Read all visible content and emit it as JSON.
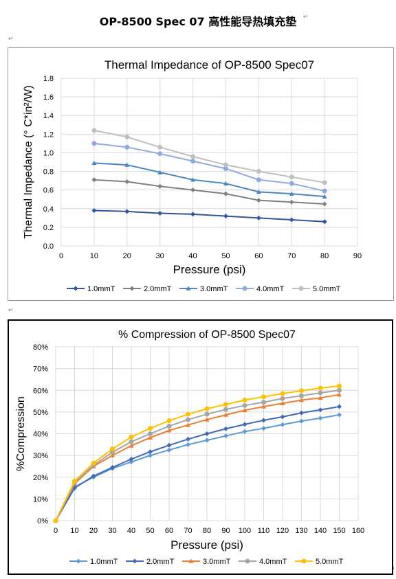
{
  "document": {
    "title": "OP-8500 Spec 07  高性能导热填充垫",
    "para_mark": "↵"
  },
  "chart_data": [
    {
      "type": "line",
      "title": "Thermal Impedance of OP-8500 Spec07",
      "xlabel": "Pressure (psi)",
      "ylabel": "Thermal Impedance (° C*in²/W)",
      "xlim": [
        0,
        90
      ],
      "ylim": [
        0,
        1.8
      ],
      "x_ticks": [
        0,
        10,
        20,
        30,
        40,
        50,
        60,
        70,
        80,
        90
      ],
      "y_ticks": [
        0.0,
        0.2,
        0.4,
        0.6,
        0.8,
        1.0,
        1.2,
        1.4,
        1.6,
        1.8
      ],
      "y_tick_labels": [
        "0.0",
        "0.2",
        "0.4",
        "0.6",
        "0.8",
        "1.0",
        "1.2",
        "1.4",
        "1.6",
        "1.8"
      ],
      "grid": true,
      "legend_position": "bottom",
      "x": [
        10,
        20,
        30,
        40,
        50,
        60,
        70,
        80
      ],
      "series": [
        {
          "name": "1.0mmT",
          "color": "#2f54a0",
          "marker": "diamond",
          "values": [
            0.38,
            0.37,
            0.35,
            0.34,
            0.32,
            0.3,
            0.28,
            0.26
          ]
        },
        {
          "name": "2.0mmT",
          "color": "#7f7f7f",
          "marker": "diamond",
          "values": [
            0.71,
            0.69,
            0.64,
            0.6,
            0.56,
            0.49,
            0.47,
            0.45
          ]
        },
        {
          "name": "3.0mmT",
          "color": "#4a86c5",
          "marker": "triangle",
          "values": [
            0.89,
            0.87,
            0.79,
            0.71,
            0.67,
            0.58,
            0.56,
            0.53
          ]
        },
        {
          "name": "4.0mmT",
          "color": "#8fa9dc",
          "marker": "circle",
          "values": [
            1.1,
            1.06,
            0.99,
            0.91,
            0.83,
            0.71,
            0.67,
            0.59
          ]
        },
        {
          "name": "5.0mmT",
          "color": "#bfbfbf",
          "marker": "circle",
          "values": [
            1.24,
            1.17,
            1.06,
            0.96,
            0.87,
            0.8,
            0.74,
            0.68
          ]
        }
      ]
    },
    {
      "type": "line",
      "title": "% Compression of OP-8500 Spec07",
      "xlabel": "Pressure (psi)",
      "ylabel": "%Compression",
      "xlim": [
        0,
        160
      ],
      "ylim": [
        0,
        80
      ],
      "x_ticks": [
        0,
        10,
        20,
        30,
        40,
        50,
        60,
        70,
        80,
        90,
        100,
        110,
        120,
        130,
        140,
        150,
        160
      ],
      "y_ticks": [
        0,
        10,
        20,
        30,
        40,
        50,
        60,
        70,
        80
      ],
      "y_tick_labels": [
        "0%",
        "10%",
        "20%",
        "30%",
        "40%",
        "50%",
        "60%",
        "70%",
        "80%"
      ],
      "grid": true,
      "legend_position": "bottom",
      "x": [
        0,
        10,
        20,
        30,
        40,
        50,
        60,
        70,
        80,
        90,
        100,
        110,
        120,
        130,
        140,
        150
      ],
      "series": [
        {
          "name": "1.0mmT",
          "color": "#5b9bd5",
          "marker": "diamond",
          "values": [
            0,
            15.5,
            20.0,
            24.0,
            27.0,
            30.0,
            32.5,
            35.0,
            37.0,
            39.0,
            41.0,
            42.5,
            44.2,
            45.8,
            47.2,
            48.7
          ]
        },
        {
          "name": "2.0mmT",
          "color": "#4169b5",
          "marker": "diamond",
          "values": [
            0,
            15.0,
            20.5,
            24.5,
            28.3,
            31.7,
            34.7,
            37.5,
            40.0,
            42.3,
            44.3,
            46.2,
            47.8,
            49.6,
            51.0,
            52.5
          ]
        },
        {
          "name": "3.0mmT",
          "color": "#ed7d31",
          "marker": "triangle",
          "values": [
            0,
            17.0,
            25.0,
            30.0,
            34.5,
            38.2,
            41.5,
            44.0,
            46.5,
            48.7,
            50.8,
            52.5,
            54.0,
            55.5,
            56.5,
            58.0
          ]
        },
        {
          "name": "4.0mmT",
          "color": "#a5a5a5",
          "marker": "circle",
          "values": [
            0,
            17.5,
            25.5,
            31.5,
            36.3,
            40.0,
            43.5,
            46.5,
            49.0,
            51.2,
            53.0,
            54.5,
            56.2,
            57.5,
            58.8,
            60.0
          ]
        },
        {
          "name": "5.0mmT",
          "color": "#ffc000",
          "marker": "circle",
          "values": [
            0,
            18.2,
            26.5,
            33.0,
            38.5,
            42.5,
            46.0,
            49.0,
            51.5,
            53.5,
            55.5,
            57.0,
            58.5,
            59.8,
            61.0,
            62.0
          ]
        }
      ]
    }
  ]
}
